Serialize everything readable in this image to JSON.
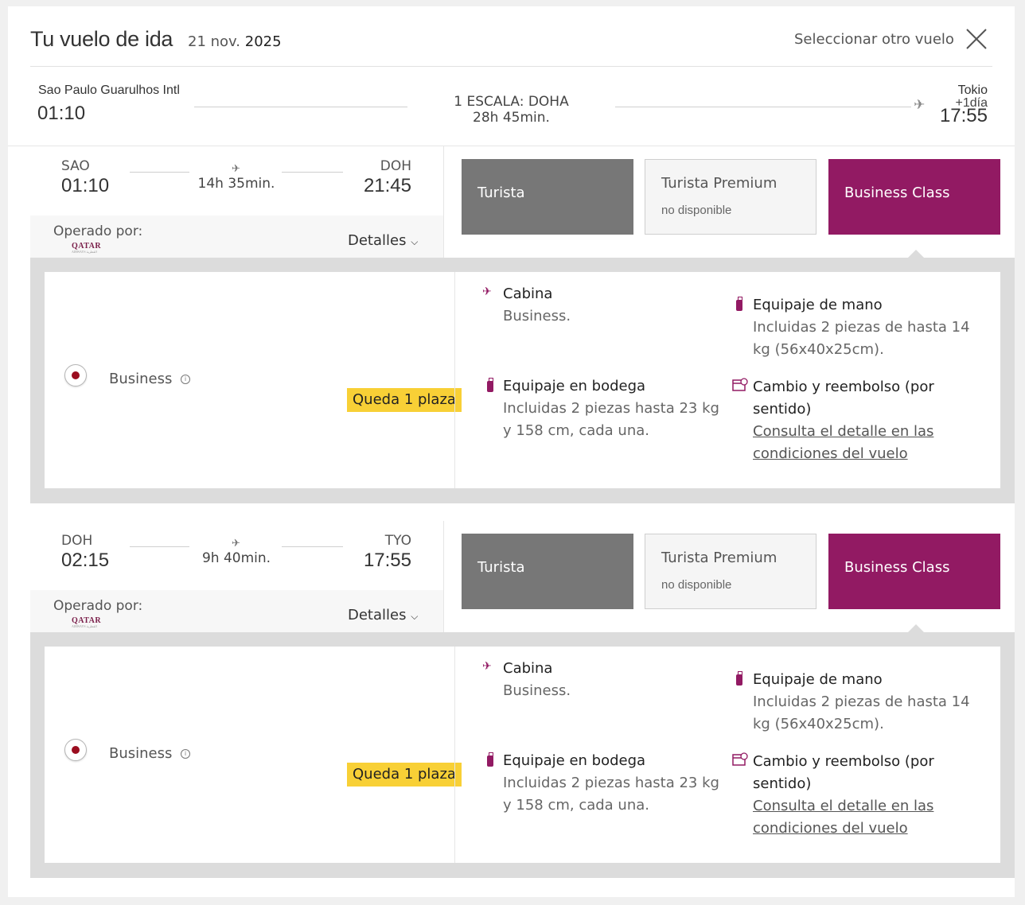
{
  "header": {
    "title": "Tu vuelo de ida",
    "date_day_month": "21 nov.",
    "date_year": "2025",
    "other_flight": "Seleccionar otro vuelo",
    "close_icon": "close-icon"
  },
  "summary": {
    "origin_name": "Sao Paulo Guarulhos Intl",
    "departure": "01:10",
    "stops": "1 ESCALA: DOHA",
    "total_duration": "28h 45min.",
    "destination_name": "Tokio",
    "next_day": "+1día",
    "arrival": "17:55"
  },
  "segments": [
    {
      "from_code": "SAO",
      "from_time": "01:10",
      "duration": "14h 35min.",
      "to_code": "DOH",
      "to_time": "21:45",
      "operated_label": "Operado por:",
      "airline_logo": "QATAR",
      "airline_logo_sub": "AIRWAYS القطرية",
      "details_label": "Detalles",
      "fares": {
        "tourist": "Turista",
        "premium": "Turista Premium",
        "premium_status": "no disponible",
        "business": "Business Class"
      },
      "option": {
        "name": "Business",
        "badge": "Queda 1 plaza",
        "cabin_title": "Cabina",
        "cabin_text": "Business.",
        "hand_title": "Equipaje de mano",
        "hand_text_1": "Incluidas 2 piezas de hasta 14",
        "hand_text_2": "kg (56x40x25cm).",
        "hold_title": "Equipaje en bodega",
        "hold_text_1": "Incluidas 2 piezas hasta 23 kg",
        "hold_text_2": "y 158 cm, cada una.",
        "change_title_1": "Cambio y reembolso (por",
        "change_title_2": "sentido)",
        "change_link_1": "Consulta el detalle en las",
        "change_link_2": "condiciones del vuelo"
      }
    },
    {
      "from_code": "DOH",
      "from_time": "02:15",
      "duration": "9h 40min.",
      "to_code": "TYO",
      "to_time": "17:55",
      "operated_label": "Operado por:",
      "airline_logo": "QATAR",
      "airline_logo_sub": "AIRWAYS القطرية",
      "details_label": "Detalles",
      "fares": {
        "tourist": "Turista",
        "premium": "Turista Premium",
        "premium_status": "no disponible",
        "business": "Business Class"
      },
      "option": {
        "name": "Business",
        "badge": "Queda 1 plaza",
        "cabin_title": "Cabina",
        "cabin_text": "Business.",
        "hand_title": "Equipaje de mano",
        "hand_text_1": "Incluidas 2 piezas de hasta 14",
        "hand_text_2": "kg (56x40x25cm).",
        "hold_title": "Equipaje en bodega",
        "hold_text_1": "Incluidas 2 piezas hasta 23 kg",
        "hold_text_2": "y 158 cm, cada una.",
        "change_title_1": "Cambio y reembolso (por",
        "change_title_2": "sentido)",
        "change_link_1": "Consulta el detalle en las",
        "change_link_2": "condiciones del vuelo"
      }
    }
  ],
  "colors": {
    "business": "#921a63",
    "tourist": "#777777",
    "badge": "#f8d036",
    "radio": "#9b0d1f"
  }
}
